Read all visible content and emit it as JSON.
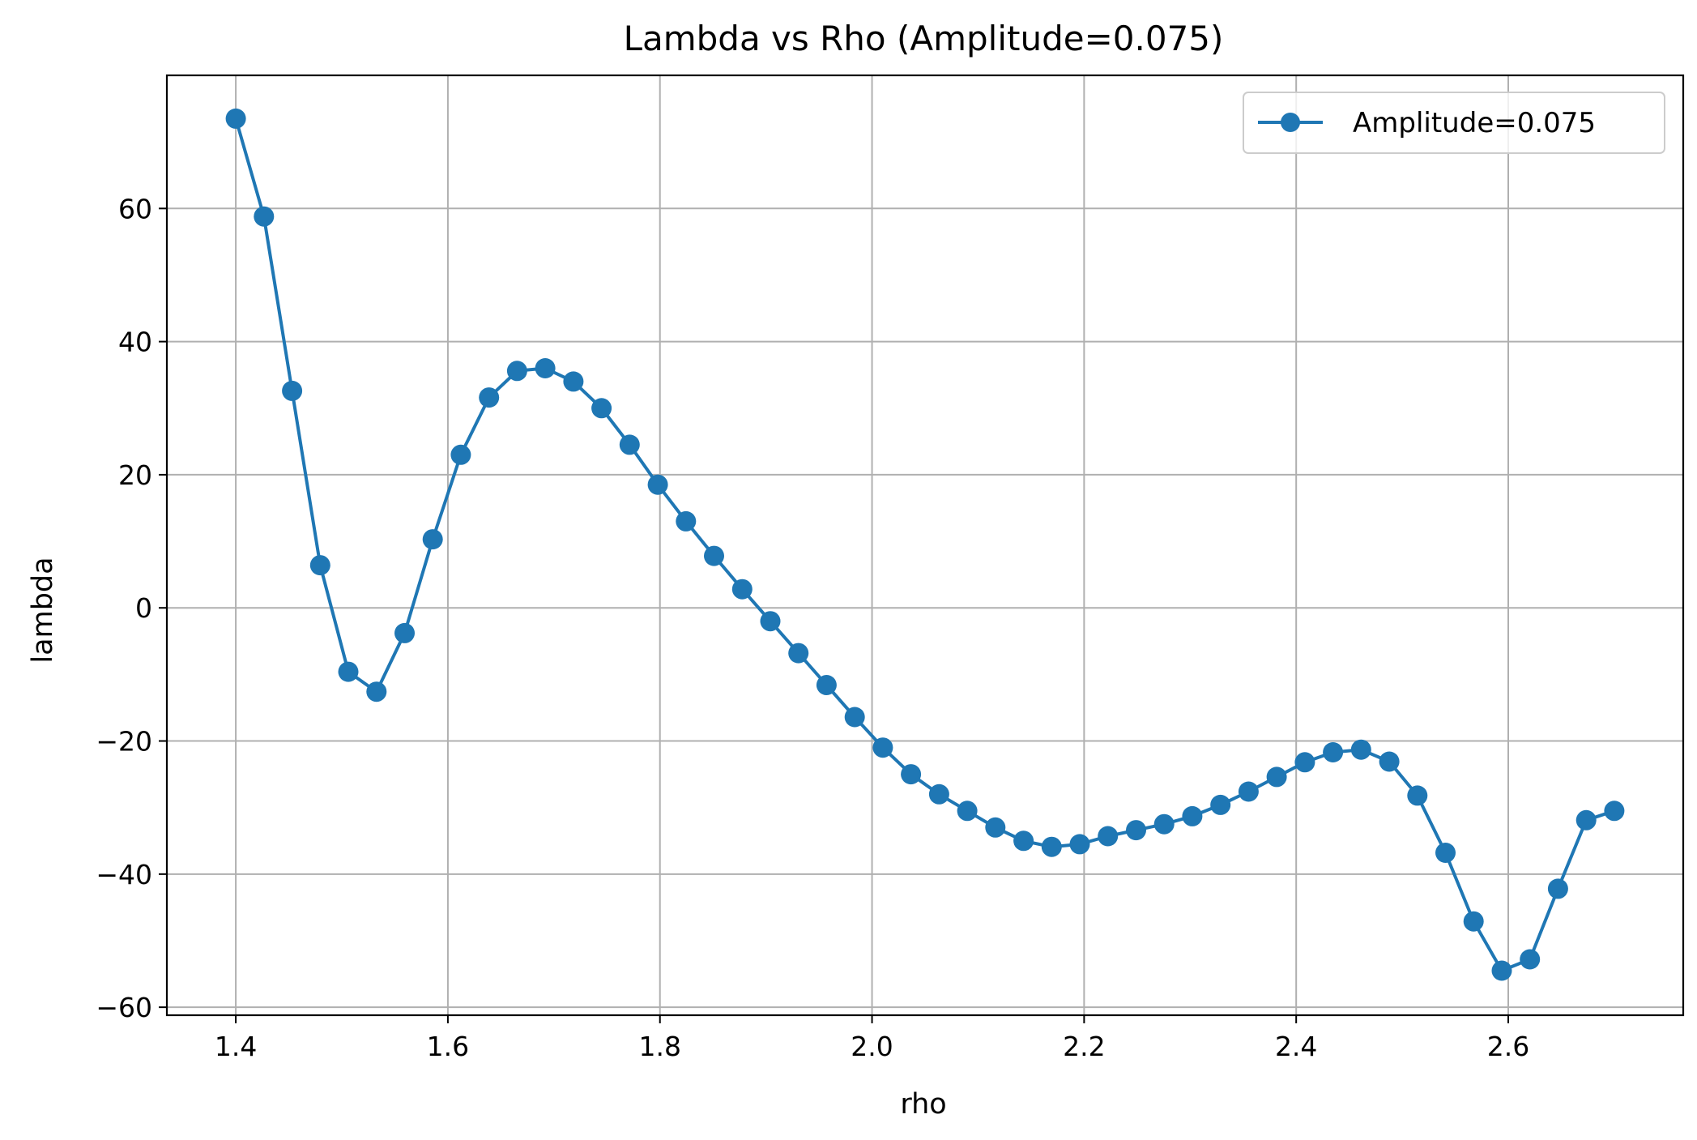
{
  "chart_data": {
    "type": "line",
    "title": "Lambda vs Rho (Amplitude=0.075)",
    "xlabel": "rho",
    "ylabel": "lambda",
    "xlim": [
      1.335,
      2.765
    ],
    "ylim": [
      -61.2,
      80.0
    ],
    "xticks": [
      1.4,
      1.6,
      1.8,
      2.0,
      2.2,
      2.4,
      2.6
    ],
    "xtick_labels": [
      "1.4",
      "1.6",
      "1.8",
      "2.0",
      "2.2",
      "2.4",
      "2.6"
    ],
    "yticks": [
      -60,
      -40,
      -20,
      0,
      20,
      40,
      60
    ],
    "ytick_labels": [
      "−60",
      "−40",
      "−20",
      "0",
      "20",
      "40",
      "60"
    ],
    "grid": true,
    "legend_position": "top-right",
    "color": "#1f77b4",
    "series": [
      {
        "name": "Amplitude=0.075",
        "x": [
          1.4,
          1.4265,
          1.4531,
          1.4796,
          1.5061,
          1.5327,
          1.5592,
          1.5857,
          1.6122,
          1.6388,
          1.6653,
          1.6918,
          1.7184,
          1.7449,
          1.7714,
          1.798,
          1.8245,
          1.851,
          1.8776,
          1.9041,
          1.9306,
          1.9571,
          1.9837,
          2.0102,
          2.0367,
          2.0633,
          2.0898,
          2.1163,
          2.1429,
          2.1694,
          2.1959,
          2.2224,
          2.249,
          2.2755,
          2.302,
          2.3286,
          2.3551,
          2.3816,
          2.4082,
          2.4347,
          2.4612,
          2.4878,
          2.5143,
          2.5408,
          2.5673,
          2.5939,
          2.6204,
          2.6469,
          2.6735,
          2.7
        ],
        "y": [
          73.5,
          58.8,
          32.6,
          6.4,
          -9.6,
          -12.6,
          -3.8,
          10.3,
          23.0,
          31.6,
          35.6,
          36.0,
          34.0,
          30.0,
          24.5,
          18.5,
          13.0,
          7.8,
          2.8,
          -2.0,
          -6.8,
          -11.6,
          -16.4,
          -21.0,
          -25.0,
          -28.0,
          -30.5,
          -33.0,
          -35.0,
          -35.9,
          -35.5,
          -34.3,
          -33.4,
          -32.5,
          -31.3,
          -29.6,
          -27.6,
          -25.4,
          -23.2,
          -21.7,
          -21.3,
          -23.1,
          -28.2,
          -36.8,
          -47.1,
          -54.5,
          -52.8,
          -42.2,
          -31.9,
          -30.5
        ]
      }
    ]
  }
}
